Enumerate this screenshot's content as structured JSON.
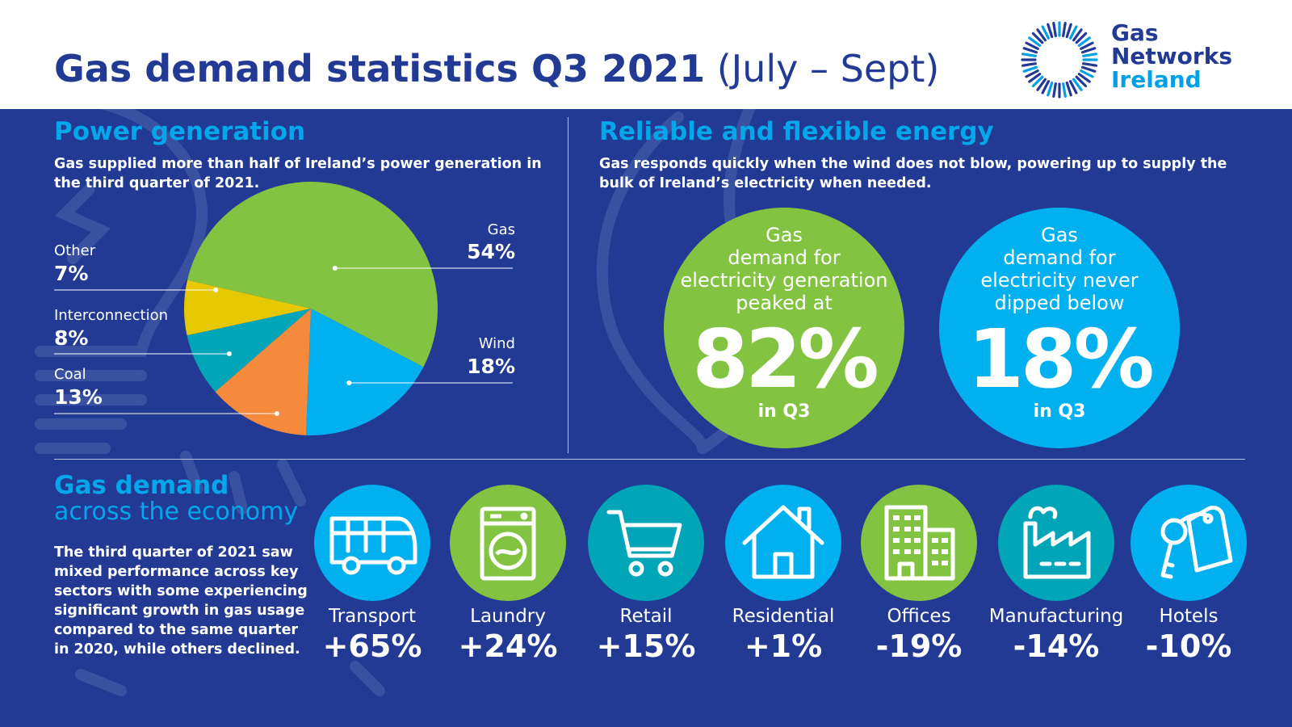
{
  "header": {
    "title_bold": "Gas demand statistics Q3 2021",
    "title_light": "(July – Sept)",
    "logo": {
      "line1": "Gas",
      "line2": "Networks",
      "line3": "Ireland"
    }
  },
  "colors": {
    "navy": "#223a93",
    "cyan": "#00a8ea",
    "green": "#82c341",
    "blue": "#00b0ef",
    "orange": "#f58a3c",
    "teal": "#00a5b8",
    "yellow": "#e6c800"
  },
  "power": {
    "heading": "Power generation",
    "text": "Gas supplied more than half of Ireland’s power generation in the third quarter of 2021."
  },
  "chart_data": {
    "type": "pie",
    "categories": [
      "Gas",
      "Wind",
      "Coal",
      "Interconnection",
      "Other"
    ],
    "values": [
      54,
      18,
      13,
      8,
      7
    ],
    "value_labels": [
      "54%",
      "18%",
      "13%",
      "8%",
      "7%"
    ],
    "colors": [
      "#82c341",
      "#00b0ef",
      "#f58a3c",
      "#00a5b8",
      "#e6c800"
    ]
  },
  "reliable": {
    "heading": "Reliable and flexible energy",
    "text": "Gas responds quickly when the wind does not blow, powering up to supply the bulk of Ireland’s electricity when needed.",
    "circle1": {
      "lines": [
        "Gas",
        "demand for",
        "electricity generation",
        "peaked at"
      ],
      "value": "82%",
      "sub": "in Q3"
    },
    "circle2": {
      "lines": [
        "Gas",
        "demand for",
        "electricity never",
        "dipped below"
      ],
      "value": "18%",
      "sub": "in Q3"
    }
  },
  "economy": {
    "heading1": "Gas demand",
    "heading2": "across the economy",
    "text": "The third quarter of 2021 saw mixed performance across key sectors with some experiencing significant growth in gas usage compared to the same quarter in 2020, while others declined.",
    "sectors": [
      {
        "label": "Transport",
        "value": "+65%",
        "icon": "bus-icon",
        "color": "#00b0ef"
      },
      {
        "label": "Laundry",
        "value": "+24%",
        "icon": "washing-machine-icon",
        "color": "#82c341"
      },
      {
        "label": "Retail",
        "value": "+15%",
        "icon": "shopping-cart-icon",
        "color": "#00a5b8"
      },
      {
        "label": "Residential",
        "value": "+1%",
        "icon": "house-icon",
        "color": "#00b0ef"
      },
      {
        "label": "Offices",
        "value": "-19%",
        "icon": "office-buildings-icon",
        "color": "#82c341"
      },
      {
        "label": "Manufacturing",
        "value": "-14%",
        "icon": "factory-icon",
        "color": "#00a5b8"
      },
      {
        "label": "Hotels",
        "value": "-10%",
        "icon": "hotel-key-icon",
        "color": "#00b0ef"
      }
    ]
  }
}
